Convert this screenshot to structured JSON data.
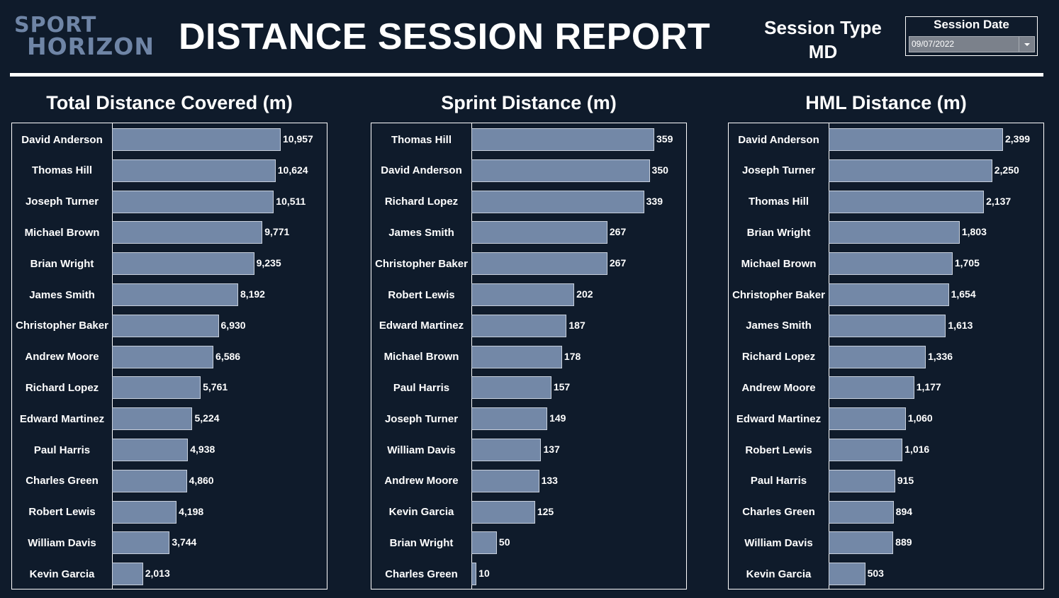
{
  "header": {
    "logo_text": "SPORT HORIZON",
    "logo_line1": "SPORT",
    "logo_line2": "HORIZON",
    "title": "DISTANCE SESSION REPORT",
    "session_type_label": "Session Type",
    "session_type_value": "MD",
    "session_date_label": "Session Date",
    "session_date_value": "09/07/2022"
  },
  "colors": {
    "background": "#0f1b2b",
    "bar": "#7388a7"
  },
  "chart_data": [
    {
      "type": "bar",
      "orientation": "horizontal",
      "title": "Total Distance Covered (m)",
      "categories": [
        "David Anderson",
        "Thomas Hill",
        "Joseph Turner",
        "Michael Brown",
        "Brian Wright",
        "James Smith",
        "Christopher Baker",
        "Andrew Moore",
        "Richard Lopez",
        "Edward Martinez",
        "Paul Harris",
        "Charles Green",
        "Robert Lewis",
        "William Davis",
        "Kevin Garcia"
      ],
      "values": [
        10957,
        10624,
        10511,
        9771,
        9235,
        8192,
        6930,
        6586,
        5761,
        5224,
        4938,
        4860,
        4198,
        3744,
        2013
      ]
    },
    {
      "type": "bar",
      "orientation": "horizontal",
      "title": "Sprint Distance (m)",
      "categories": [
        "Thomas Hill",
        "David Anderson",
        "Richard Lopez",
        "James Smith",
        "Christopher Baker",
        "Robert Lewis",
        "Edward Martinez",
        "Michael Brown",
        "Paul Harris",
        "Joseph Turner",
        "William Davis",
        "Andrew Moore",
        "Kevin Garcia",
        "Brian Wright",
        "Charles Green"
      ],
      "values": [
        359,
        350,
        339,
        267,
        267,
        202,
        187,
        178,
        157,
        149,
        137,
        133,
        125,
        50,
        10
      ]
    },
    {
      "type": "bar",
      "orientation": "horizontal",
      "title": "HML Distance (m)",
      "categories": [
        "David Anderson",
        "Joseph Turner",
        "Thomas Hill",
        "Brian Wright",
        "Michael Brown",
        "Christopher Baker",
        "James Smith",
        "Richard Lopez",
        "Andrew Moore",
        "Edward Martinez",
        "Robert Lewis",
        "Paul Harris",
        "Charles Green",
        "William Davis",
        "Kevin Garcia"
      ],
      "values": [
        2399,
        2250,
        2137,
        1803,
        1705,
        1654,
        1613,
        1336,
        1177,
        1060,
        1016,
        915,
        894,
        889,
        503
      ]
    }
  ]
}
